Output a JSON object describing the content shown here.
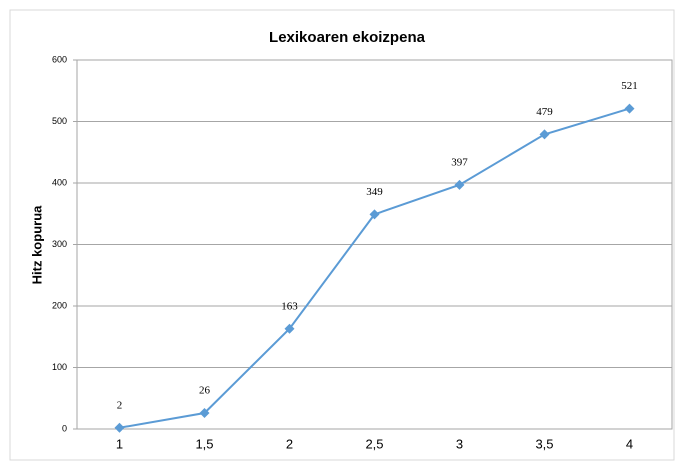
{
  "chart_data": {
    "type": "line",
    "title": "Lexikoaren ekoizpena",
    "y_label": "Hitz kopurua",
    "categories": [
      "1",
      "1,5",
      "2",
      "2,5",
      "3",
      "3,5",
      "4"
    ],
    "series": [
      {
        "name": "Hitz kopurua",
        "color": "#5b9bd5",
        "values": [
          2,
          26,
          163,
          349,
          397,
          479,
          521
        ]
      }
    ],
    "ylim": [
      0,
      600
    ],
    "yticks": [
      0,
      100,
      200,
      300,
      400,
      500,
      600
    ],
    "grid": true,
    "data_labels": true
  }
}
